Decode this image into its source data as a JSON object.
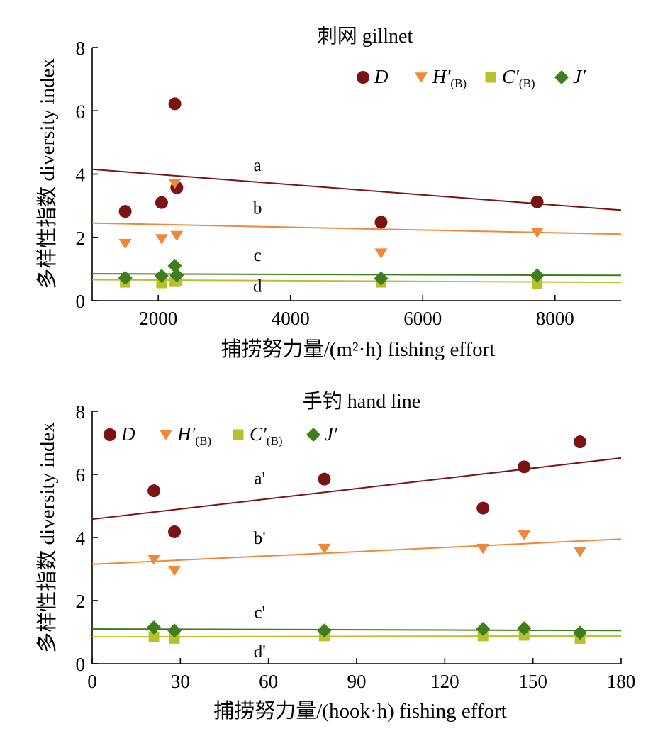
{
  "chart_data": [
    {
      "type": "scatter",
      "title": "刺网 gillnet",
      "xlabel": "捕捞努力量/(m²·h) fishing effort",
      "ylabel": "多样性指数 diversity index",
      "xlim": [
        1000,
        9000
      ],
      "ylim": [
        0,
        8
      ],
      "xticks": [
        2000,
        4000,
        6000,
        8000
      ],
      "yticks": [
        0,
        2,
        4,
        6,
        8
      ],
      "legend_position": "top-right",
      "series": [
        {
          "label_main": "D",
          "label_prime": "",
          "label_sub": "",
          "marker": "circle",
          "color": "#7a1414",
          "x": [
            1500,
            2050,
            2250,
            2280,
            5370,
            7730
          ],
          "y": [
            2.82,
            3.1,
            6.22,
            3.57,
            2.48,
            3.12
          ]
        },
        {
          "label_main": "H",
          "label_prime": "′",
          "label_sub": "(B)",
          "marker": "triangle-down",
          "color": "#f0883a",
          "x": [
            1500,
            2050,
            2250,
            2280,
            5370,
            7730
          ],
          "y": [
            1.8,
            1.95,
            3.7,
            2.05,
            1.5,
            2.15
          ]
        },
        {
          "label_main": "C",
          "label_prime": "′",
          "label_sub": "(B)",
          "marker": "square",
          "color": "#b9c02e",
          "x": [
            1500,
            2050,
            2250,
            2280,
            5370,
            7730
          ],
          "y": [
            0.58,
            0.56,
            0.6,
            0.62,
            0.58,
            0.55
          ]
        },
        {
          "label_main": "J",
          "label_prime": "′",
          "label_sub": "",
          "marker": "diamond",
          "color": "#3f7e1f",
          "x": [
            1500,
            2050,
            2250,
            2280,
            5370,
            7730
          ],
          "y": [
            0.72,
            0.78,
            1.1,
            0.8,
            0.7,
            0.8
          ]
        }
      ],
      "trendlines": [
        {
          "label": "a",
          "color": "#7a1414",
          "x": [
            1000,
            9000
          ],
          "y": [
            4.15,
            2.86
          ],
          "label_at": [
            3500,
            4.1
          ]
        },
        {
          "label": "b",
          "color": "#f0883a",
          "x": [
            1000,
            9000
          ],
          "y": [
            2.45,
            2.1
          ],
          "label_at": [
            3500,
            2.75
          ]
        },
        {
          "label": "c",
          "color": "#3f7e1f",
          "x": [
            1000,
            9000
          ],
          "y": [
            0.85,
            0.8
          ],
          "label_at": [
            3500,
            1.25
          ]
        },
        {
          "label": "d",
          "color": "#b9c02e",
          "x": [
            1000,
            9000
          ],
          "y": [
            0.66,
            0.58
          ],
          "label_at": [
            3500,
            0.28
          ]
        }
      ]
    },
    {
      "type": "scatter",
      "title": "手钓 hand line",
      "xlabel": "捕捞努力量/(hook·h)  fishing effort",
      "ylabel": "多样性指数 diversity index",
      "xlim": [
        0,
        180
      ],
      "ylim": [
        0,
        8
      ],
      "xticks": [
        0,
        30,
        60,
        90,
        120,
        150,
        180
      ],
      "yticks": [
        0,
        2,
        4,
        6,
        8
      ],
      "legend_position": "top-left",
      "series": [
        {
          "label_main": "D",
          "label_prime": "",
          "label_sub": "",
          "marker": "circle",
          "color": "#7a1414",
          "x": [
            21,
            28,
            79,
            133,
            147,
            166
          ],
          "y": [
            5.48,
            4.18,
            5.85,
            4.93,
            6.24,
            7.03
          ]
        },
        {
          "label_main": "H",
          "label_prime": "′",
          "label_sub": "(B)",
          "marker": "triangle-down",
          "color": "#f0883a",
          "x": [
            21,
            28,
            79,
            133,
            147,
            166
          ],
          "y": [
            3.3,
            2.95,
            3.65,
            3.65,
            4.08,
            3.55
          ]
        },
        {
          "label_main": "C",
          "label_prime": "′",
          "label_sub": "(B)",
          "marker": "square",
          "color": "#b9c02e",
          "x": [
            21,
            28,
            79,
            133,
            147,
            166
          ],
          "y": [
            0.85,
            0.8,
            0.88,
            0.88,
            0.9,
            0.8
          ]
        },
        {
          "label_main": "J",
          "label_prime": "′",
          "label_sub": "",
          "marker": "diamond",
          "color": "#3f7e1f",
          "x": [
            21,
            28,
            79,
            133,
            147,
            166
          ],
          "y": [
            1.15,
            1.05,
            1.05,
            1.1,
            1.12,
            0.98
          ]
        }
      ],
      "trendlines": [
        {
          "label": "a'",
          "color": "#7a1414",
          "x": [
            0,
            180
          ],
          "y": [
            4.58,
            6.52
          ],
          "label_at": [
            57,
            5.7
          ]
        },
        {
          "label": "b'",
          "color": "#f0883a",
          "x": [
            0,
            180
          ],
          "y": [
            3.15,
            3.95
          ],
          "label_at": [
            57,
            3.8
          ]
        },
        {
          "label": "c'",
          "color": "#3f7e1f",
          "x": [
            0,
            180
          ],
          "y": [
            1.1,
            1.05
          ],
          "label_at": [
            57,
            1.45
          ]
        },
        {
          "label": "d'",
          "color": "#b9c02e",
          "x": [
            0,
            180
          ],
          "y": [
            0.85,
            0.88
          ],
          "label_at": [
            57,
            0.2
          ]
        }
      ]
    }
  ]
}
